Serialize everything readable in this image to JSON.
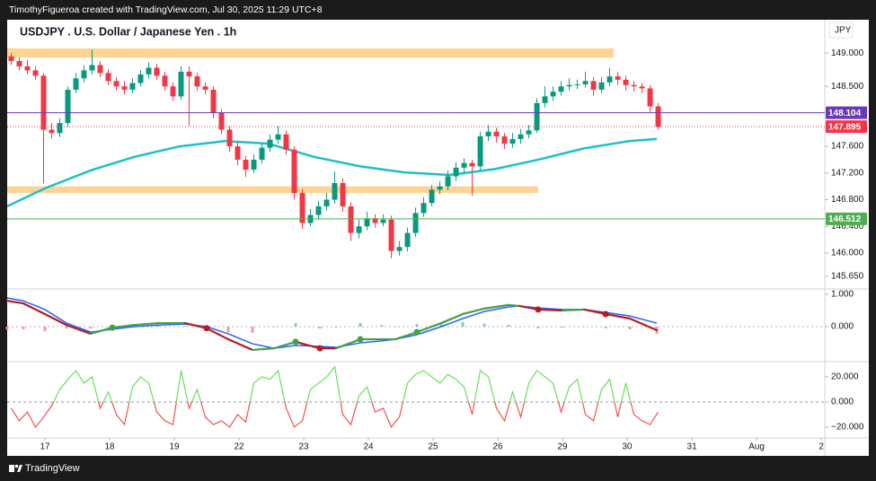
{
  "header": "TimothyFigueroa created with TradingView.com, Jul 30, 2025 11:29 UTC+8",
  "footer": "TradingView",
  "chart_data": [
    {
      "type": "candlestick",
      "title": "USDJPY . U.S. Dollar / Japanese Yen . 1h",
      "currency": "JPY",
      "up_color": "#089981",
      "down_color": "#f23645",
      "x": [
        1.5,
        4.5,
        7.5,
        10.5,
        13.5,
        16.5,
        19.5,
        22.5,
        25.5,
        28.5,
        31.5,
        34.5,
        37.5,
        40.5,
        43.5,
        46.5,
        49.5,
        52.5,
        55.5,
        58.5,
        61.5,
        64.5,
        67.5,
        70.5,
        73.5,
        76.5,
        79.5,
        82.5,
        85.5,
        88.5,
        91.5,
        94.5,
        97.5,
        100.5,
        103.5,
        106.5,
        109.5,
        112.5,
        115.5,
        118.5,
        121.5,
        124.5,
        127.5,
        130.5,
        133.5,
        136.5,
        139.5,
        142.5,
        145.5,
        148.5,
        151.5,
        154.5,
        157.5,
        160.5,
        163.5,
        166.5,
        169.5,
        172.5,
        175.5,
        178.5,
        181.5,
        184.5,
        187.5,
        190.5,
        193.5,
        196.5,
        199.5,
        202.5,
        205.5,
        208.5,
        211.5,
        214.5,
        217.5,
        220.5,
        223.5,
        226.5,
        229.5,
        232.5,
        235.5,
        238.5,
        241.5
      ],
      "open": [
        148.95,
        148.88,
        148.8,
        148.74,
        148.66,
        147.85,
        147.8,
        147.95,
        148.45,
        148.62,
        148.74,
        148.82,
        148.7,
        148.58,
        148.5,
        148.45,
        148.55,
        148.68,
        148.78,
        148.66,
        148.5,
        148.35,
        148.72,
        148.65,
        148.5,
        148.45,
        148.1,
        147.85,
        147.6,
        147.4,
        147.25,
        147.4,
        147.58,
        147.7,
        147.78,
        147.55,
        146.9,
        146.45,
        146.57,
        146.7,
        146.8,
        147.05,
        146.7,
        146.3,
        146.4,
        146.52,
        146.45,
        146.5,
        146.03,
        146.09,
        146.3,
        146.6,
        146.75,
        146.95,
        147.0,
        147.15,
        147.28,
        147.35,
        147.3,
        147.75,
        147.82,
        147.75,
        147.64,
        147.71,
        147.78,
        147.84,
        148.25,
        148.35,
        148.42,
        148.5,
        148.52,
        148.53,
        148.58,
        148.45,
        148.56,
        148.65,
        148.6,
        148.52,
        148.5,
        148.47,
        148.2
      ],
      "high": [
        149.0,
        148.93,
        148.9,
        148.8,
        148.7,
        147.95,
        148.02,
        148.5,
        148.7,
        148.82,
        149.05,
        148.88,
        148.76,
        148.64,
        148.58,
        148.62,
        148.74,
        148.86,
        148.84,
        148.72,
        148.56,
        148.8,
        148.8,
        148.7,
        148.56,
        148.5,
        148.16,
        147.9,
        147.66,
        147.46,
        147.48,
        147.64,
        147.78,
        147.9,
        147.84,
        147.6,
        146.96,
        146.66,
        146.78,
        146.9,
        147.22,
        147.12,
        146.76,
        146.5,
        146.62,
        146.58,
        146.58,
        146.56,
        146.18,
        146.38,
        146.68,
        146.84,
        147.02,
        147.08,
        147.24,
        147.36,
        147.42,
        147.4,
        147.82,
        147.92,
        147.88,
        147.8,
        147.8,
        147.86,
        147.92,
        148.32,
        148.5,
        148.5,
        148.58,
        148.62,
        148.6,
        148.72,
        148.64,
        148.64,
        148.78,
        148.72,
        148.66,
        148.58,
        148.55,
        148.52,
        148.25
      ],
      "low": [
        148.82,
        148.74,
        148.68,
        148.6,
        147.04,
        147.72,
        147.74,
        147.9,
        148.4,
        148.56,
        148.68,
        148.64,
        148.52,
        148.44,
        148.38,
        148.4,
        148.5,
        148.62,
        148.6,
        148.44,
        148.28,
        148.3,
        147.91,
        148.44,
        148.38,
        148.02,
        147.78,
        147.52,
        147.32,
        147.14,
        147.2,
        147.34,
        147.52,
        147.64,
        147.48,
        146.8,
        146.36,
        146.4,
        146.5,
        146.64,
        146.74,
        146.62,
        146.18,
        146.22,
        146.34,
        146.38,
        146.4,
        145.92,
        145.96,
        146.02,
        146.24,
        146.54,
        146.7,
        146.88,
        146.94,
        147.08,
        147.2,
        146.86,
        147.24,
        147.68,
        147.66,
        147.56,
        147.58,
        147.64,
        147.72,
        147.8,
        148.18,
        148.28,
        148.36,
        148.44,
        148.46,
        148.48,
        148.36,
        148.4,
        148.5,
        148.52,
        148.44,
        148.42,
        148.4,
        148.12,
        147.85
      ],
      "close": [
        148.88,
        148.8,
        148.74,
        148.66,
        147.85,
        147.8,
        147.95,
        148.45,
        148.62,
        148.74,
        148.82,
        148.7,
        148.58,
        148.5,
        148.45,
        148.55,
        148.68,
        148.78,
        148.66,
        148.5,
        148.35,
        148.72,
        148.65,
        148.5,
        148.45,
        148.1,
        147.85,
        147.6,
        147.4,
        147.25,
        147.4,
        147.58,
        147.7,
        147.78,
        147.55,
        146.9,
        146.45,
        146.57,
        146.7,
        146.8,
        147.05,
        146.7,
        146.3,
        146.4,
        146.52,
        146.45,
        146.5,
        146.03,
        146.09,
        146.3,
        146.6,
        146.75,
        146.95,
        147.0,
        147.15,
        147.28,
        147.35,
        147.3,
        147.75,
        147.82,
        147.75,
        147.64,
        147.71,
        147.78,
        147.84,
        148.25,
        148.35,
        148.42,
        148.5,
        148.52,
        148.53,
        148.58,
        148.45,
        148.56,
        148.65,
        148.6,
        148.52,
        148.5,
        148.47,
        148.2,
        147.895
      ],
      "moving_average": {
        "color": "#1cbfc9",
        "x": [
          0,
          14,
          31,
          47,
          64,
          81,
          97,
          114,
          131,
          147,
          164,
          181,
          197,
          214,
          231,
          241
        ],
        "values": [
          146.7,
          146.97,
          147.24,
          147.44,
          147.6,
          147.68,
          147.64,
          147.44,
          147.3,
          147.21,
          147.17,
          147.26,
          147.4,
          147.57,
          147.68,
          147.71
        ]
      },
      "zones": [
        {
          "from": 148.93,
          "to": 149.07,
          "x_end": 225,
          "color": "#ffcc80"
        },
        {
          "from": 146.9,
          "to": 147.0,
          "x_end": 197,
          "color": "#ffcc80"
        }
      ],
      "price_lines": [
        {
          "value": 148.104,
          "label": "148.104",
          "color": "#673ab7",
          "dashed": false
        },
        {
          "value": 147.895,
          "label": "147.895",
          "color": "#f23645",
          "dashed": true
        },
        {
          "value": 146.512,
          "label": "146.512",
          "color": "#4caf50",
          "dashed": false
        }
      ],
      "xlim": [
        0,
        303.3
      ],
      "xticks": [
        {
          "value": 14,
          "label": "17"
        },
        {
          "value": 38,
          "label": "18"
        },
        {
          "value": 62,
          "label": "19"
        },
        {
          "value": 86,
          "label": "22"
        },
        {
          "value": 110,
          "label": "23"
        },
        {
          "value": 134,
          "label": "24"
        },
        {
          "value": 158,
          "label": "25"
        },
        {
          "value": 182,
          "label": "26"
        },
        {
          "value": 206,
          "label": "29"
        },
        {
          "value": 230,
          "label": "30"
        },
        {
          "value": 254,
          "label": "31"
        },
        {
          "value": 278,
          "label": "Aug"
        },
        {
          "value": 302,
          "label": "2"
        }
      ],
      "ylim": [
        145.46,
        149.5
      ],
      "yticks": [
        {
          "value": 149,
          "label": "149.000"
        },
        {
          "value": 148.5,
          "label": "148.500"
        },
        {
          "value": 147.6,
          "label": "147.600"
        },
        {
          "value": 147.2,
          "label": "147.200"
        },
        {
          "value": 146.8,
          "label": "146.800"
        },
        {
          "value": 146.4,
          "label": "146.400"
        },
        {
          "value": 146,
          "label": "146.000"
        },
        {
          "value": 145.65,
          "label": "145.650"
        }
      ]
    },
    {
      "type": "macd",
      "macd_up_color": "#43a047",
      "macd_down_color": "#b71c1c",
      "signal_color": "#2962ff",
      "hist_up_color": "#80cbc4",
      "hist_down_color": "#ef9a9a",
      "baseline": 0,
      "x": [
        0,
        6,
        14,
        22,
        31,
        39,
        47,
        56,
        66,
        74,
        82,
        91,
        99,
        107,
        116,
        122,
        131,
        139,
        144,
        152,
        161,
        169,
        177,
        186,
        190,
        197,
        206,
        214,
        222,
        231,
        241
      ],
      "macd": [
        0.8,
        0.72,
        0.39,
        0.05,
        -0.22,
        -0.03,
        0.05,
        0.11,
        0.11,
        -0.05,
        -0.39,
        -0.72,
        -0.67,
        -0.47,
        -0.67,
        -0.67,
        -0.39,
        -0.39,
        -0.39,
        -0.17,
        0.11,
        0.39,
        0.56,
        0.67,
        0.64,
        0.53,
        0.5,
        0.53,
        0.39,
        0.25,
        -0.11
      ],
      "signal": [
        0.89,
        0.8,
        0.53,
        0.11,
        -0.17,
        -0.08,
        0.0,
        0.05,
        0.08,
        0.0,
        -0.22,
        -0.53,
        -0.67,
        -0.58,
        -0.61,
        -0.64,
        -0.5,
        -0.44,
        -0.39,
        -0.25,
        0.0,
        0.25,
        0.47,
        0.61,
        0.64,
        0.58,
        0.53,
        0.53,
        0.44,
        0.33,
        0.11
      ],
      "histogram": [
        -0.09,
        -0.08,
        -0.14,
        -0.06,
        -0.05,
        0.05,
        0.05,
        0.06,
        0.03,
        -0.05,
        -0.17,
        -0.19,
        0.0,
        0.11,
        -0.06,
        -0.03,
        0.11,
        0.05,
        0.0,
        0.08,
        0.11,
        0.14,
        0.09,
        0.06,
        0.0,
        -0.05,
        -0.03,
        0.0,
        -0.05,
        -0.08,
        -0.22
      ],
      "xlim": [
        0,
        303.3
      ],
      "ylim": [
        -1.083,
        1.167
      ],
      "yticks": [
        {
          "value": 1,
          "label": "1.000"
        },
        {
          "value": 0,
          "label": "0.000"
        }
      ]
    },
    {
      "type": "line",
      "up_color": "#66e05a",
      "down_color": "#ef5350",
      "baseline": 0,
      "x": [
        1.5,
        4.5,
        7.5,
        10.5,
        13.5,
        16.5,
        19.5,
        22.5,
        25.5,
        28.5,
        31.5,
        34.5,
        37.5,
        40.5,
        43.5,
        46.5,
        49.5,
        52.5,
        55.5,
        58.5,
        61.5,
        64.5,
        67.5,
        70.5,
        73.5,
        76.5,
        79.5,
        82.5,
        85.5,
        88.5,
        91.5,
        94.5,
        97.5,
        100.5,
        103.5,
        106.5,
        109.5,
        112.5,
        115.5,
        118.5,
        121.5,
        124.5,
        127.5,
        130.5,
        133.5,
        136.5,
        139.5,
        142.5,
        145.5,
        148.5,
        151.5,
        154.5,
        157.5,
        160.5,
        163.5,
        166.5,
        169.5,
        172.5,
        175.5,
        178.5,
        181.5,
        184.5,
        187.5,
        190.5,
        193.5,
        196.5,
        199.5,
        202.5,
        205.5,
        208.5,
        211.5,
        214.5,
        217.5,
        220.5,
        223.5,
        226.5,
        229.5,
        232.5,
        235.5,
        238.5,
        241.5
      ],
      "values": [
        -5,
        -15,
        -8,
        -20,
        -12,
        -3,
        10,
        18,
        25,
        15,
        20,
        -5,
        8,
        -10,
        -18,
        12,
        20,
        15,
        -8,
        -15,
        -18,
        25,
        -5,
        10,
        -12,
        -18,
        -15,
        -20,
        -10,
        -16,
        15,
        20,
        18,
        25,
        -5,
        -20,
        -15,
        10,
        15,
        20,
        28,
        -10,
        -18,
        5,
        12,
        -8,
        -5,
        -20,
        -12,
        15,
        22,
        25,
        20,
        15,
        22,
        18,
        12,
        -10,
        25,
        20,
        -5,
        -15,
        8,
        -12,
        15,
        25,
        20,
        15,
        -8,
        12,
        18,
        -10,
        -15,
        10,
        18,
        -12,
        15,
        -10,
        -15,
        -18,
        -8
      ],
      "xlim": [
        0,
        303.3
      ],
      "ylim": [
        -28.6,
        32.1
      ],
      "yticks": [
        {
          "value": 20,
          "label": "20.000"
        },
        {
          "value": 0,
          "label": "0.000"
        },
        {
          "value": -20,
          "label": "−20.000"
        }
      ]
    }
  ]
}
